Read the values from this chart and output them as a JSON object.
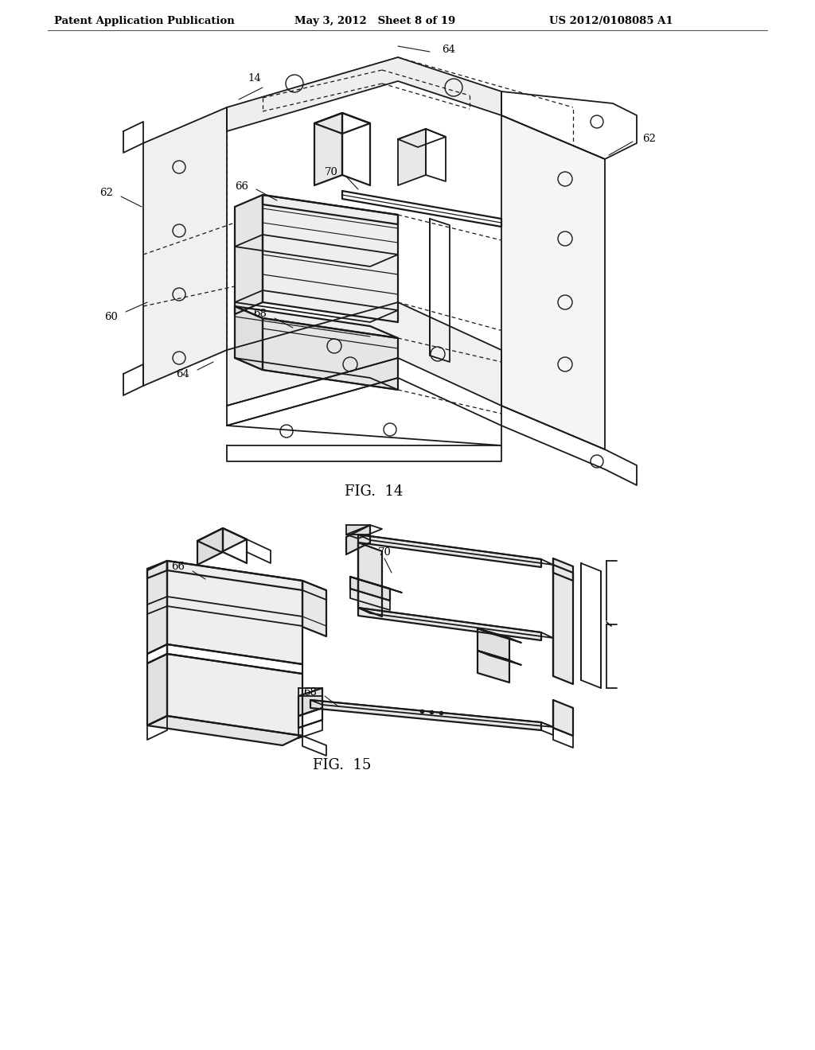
{
  "background_color": "#ffffff",
  "header_left": "Patent Application Publication",
  "header_center": "May 3, 2012   Sheet 8 of 19",
  "header_right": "US 2012/0108085 A1",
  "fig14_caption": "FIG.  14",
  "fig15_caption": "FIG.  15",
  "line_color": "#1a1a1a",
  "text_color": "#000000",
  "header_fontsize": 9.5,
  "label_fontsize": 9.5,
  "caption_fontsize": 13
}
